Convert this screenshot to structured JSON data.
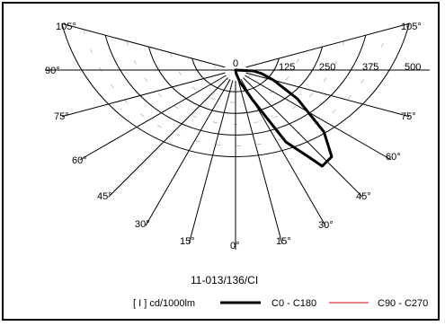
{
  "chart_data": {
    "type": "polar-photometric",
    "title": "11-013/136/CI",
    "radial_unit_label": "[ I ] cd/1000lm",
    "radial_ticks": [
      "0",
      "125",
      "250",
      "375",
      "500"
    ],
    "radial_max": 500,
    "angle_labels": {
      "left": [
        "105°",
        "90°",
        "75°",
        "60°",
        "45°",
        "30°",
        "15°"
      ],
      "bottom": "0°",
      "right": [
        "15°",
        "30°",
        "45°",
        "60°",
        "75°",
        "105°"
      ]
    },
    "series": [
      {
        "name": "C0 - C180",
        "color": "#000000",
        "points": [
          {
            "angle": 0,
            "value": 0
          },
          {
            "angle": 10,
            "value": 10
          },
          {
            "angle": 20,
            "value": 35
          },
          {
            "angle": 30,
            "value": 100
          },
          {
            "angle": 35,
            "value": 245
          },
          {
            "angle": 40,
            "value": 315
          },
          {
            "angle": 42,
            "value": 360
          },
          {
            "angle": 48,
            "value": 360
          },
          {
            "angle": 55,
            "value": 300
          },
          {
            "angle": 65,
            "value": 190
          },
          {
            "angle": 75,
            "value": 110
          },
          {
            "angle": 82,
            "value": 75
          },
          {
            "angle": 87,
            "value": 50
          },
          {
            "angle": 90,
            "value": 0
          }
        ]
      },
      {
        "name": "C90 - C270",
        "color": "#d9000d",
        "points": []
      }
    ]
  }
}
